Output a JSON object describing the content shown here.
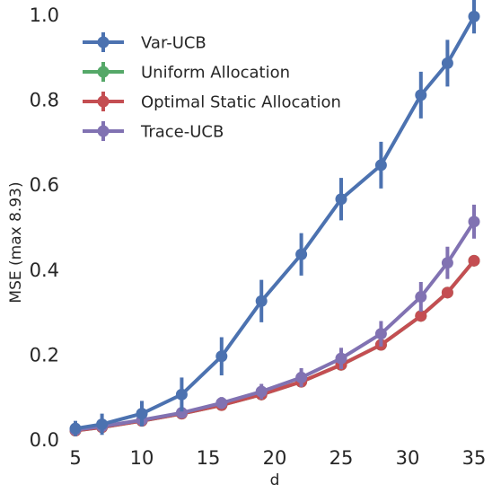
{
  "chart_data": {
    "type": "line",
    "title": "",
    "xlabel": "d",
    "ylabel": "MSE (max 8.93)",
    "xlim": [
      5,
      35
    ],
    "ylim": [
      0,
      1.0
    ],
    "xticks": [
      5,
      10,
      15,
      20,
      25,
      30,
      35
    ],
    "yticks": [
      "0.0",
      "0.2",
      "0.4",
      "0.6",
      "0.8",
      "1.0"
    ],
    "grid": false,
    "legend_position": "top-left",
    "x": [
      5,
      7,
      10,
      13,
      16,
      19,
      22,
      25,
      28,
      31,
      33,
      35
    ],
    "series": [
      {
        "name": "Var-UCB",
        "color": "#4c72b0",
        "values": [
          0.025,
          0.035,
          0.06,
          0.105,
          0.195,
          0.325,
          0.435,
          0.565,
          0.645,
          0.81,
          0.885,
          0.995
        ],
        "errors": [
          0.018,
          0.025,
          0.03,
          0.04,
          0.045,
          0.05,
          0.05,
          0.05,
          0.055,
          0.055,
          0.055,
          0.04
        ]
      },
      {
        "name": "Uniform Allocation",
        "color": "#55a868",
        "values": [
          0.02,
          0.028,
          0.043,
          0.06,
          0.08,
          0.105,
          0.135,
          0.175,
          0.222,
          0.29,
          0.345,
          0.42
        ],
        "errors": [
          0,
          0,
          0,
          0,
          0,
          0,
          0,
          0,
          0,
          0,
          0,
          0
        ]
      },
      {
        "name": "Optimal Static Allocation",
        "color": "#c44e52",
        "values": [
          0.02,
          0.028,
          0.043,
          0.06,
          0.08,
          0.105,
          0.135,
          0.175,
          0.222,
          0.29,
          0.345,
          0.42
        ],
        "errors": [
          0.004,
          0.004,
          0.005,
          0.005,
          0.006,
          0.007,
          0.008,
          0.009,
          0.01,
          0.01,
          0.01,
          0.01
        ]
      },
      {
        "name": "Trace-UCB",
        "color": "#8172b2",
        "values": [
          0.022,
          0.03,
          0.045,
          0.062,
          0.085,
          0.112,
          0.145,
          0.19,
          0.248,
          0.335,
          0.415,
          0.512
        ],
        "errors": [
          0.01,
          0.012,
          0.012,
          0.012,
          0.014,
          0.018,
          0.022,
          0.025,
          0.03,
          0.035,
          0.038,
          0.04
        ]
      }
    ]
  }
}
